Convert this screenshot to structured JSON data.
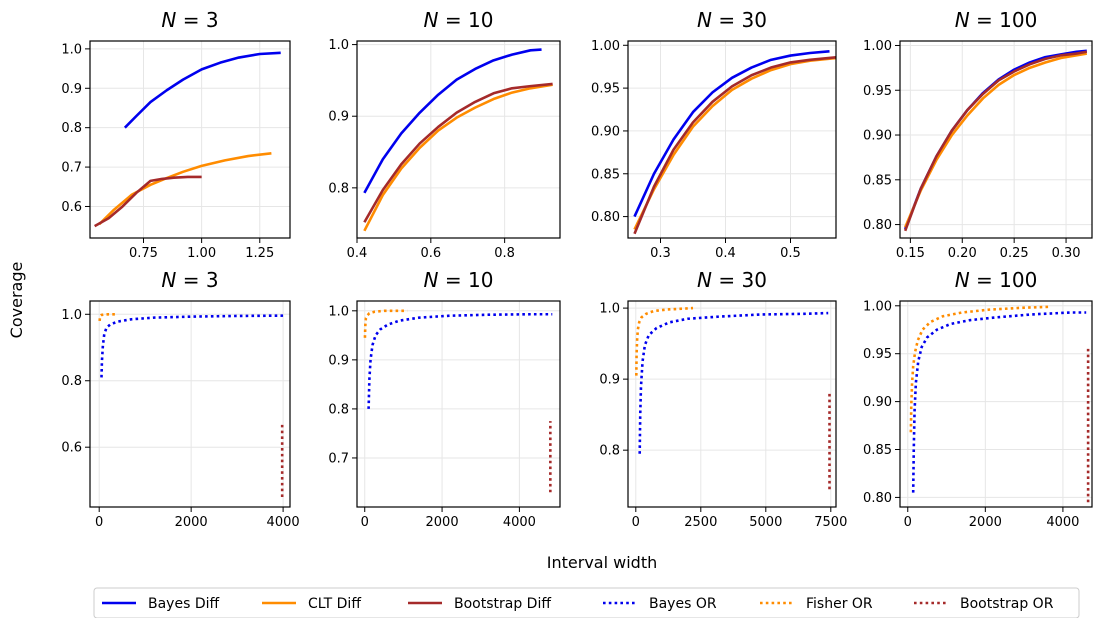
{
  "figure": {
    "xlabel": "Interval width",
    "ylabel": "Coverage"
  },
  "legend": {
    "placement": "bottom",
    "items": [
      {
        "label": "Bayes Diff",
        "color": "#0000ee",
        "dash": "solid"
      },
      {
        "label": "CLT Diff",
        "color": "#ff8c00",
        "dash": "solid"
      },
      {
        "label": "Bootstrap Diff",
        "color": "#a52a2a",
        "dash": "solid"
      },
      {
        "label": "Bayes OR",
        "color": "#0000ee",
        "dash": "dotted"
      },
      {
        "label": "Fisher OR",
        "color": "#ff8c00",
        "dash": "dotted"
      },
      {
        "label": "Bootstrap OR",
        "color": "#a52a2a",
        "dash": "dotted"
      }
    ]
  },
  "chart_data": [
    {
      "type": "line",
      "title": "N = 3",
      "grid": true,
      "xlim": [
        0.52,
        1.38
      ],
      "ylim": [
        0.52,
        1.02
      ],
      "xticks": [
        0.75,
        1.0,
        1.25
      ],
      "xticklabels": [
        "0.75",
        "1.00",
        "1.25"
      ],
      "yticks": [
        0.6,
        0.7,
        0.8,
        0.9,
        1.0
      ],
      "yticklabels": [
        "0.6",
        "0.7",
        "0.8",
        "0.9",
        "1.0"
      ],
      "series": [
        {
          "name": "Bayes Diff",
          "x": [
            0.67,
            0.72,
            0.78,
            0.85,
            0.92,
            1.0,
            1.08,
            1.16,
            1.25,
            1.34
          ],
          "y": [
            0.8,
            0.83,
            0.865,
            0.895,
            0.922,
            0.948,
            0.965,
            0.978,
            0.987,
            0.99
          ]
        },
        {
          "name": "CLT Diff",
          "x": [
            0.56,
            0.62,
            0.7,
            0.78,
            0.85,
            0.92,
            1.0,
            1.1,
            1.2,
            1.3
          ],
          "y": [
            0.555,
            0.59,
            0.63,
            0.655,
            0.672,
            0.688,
            0.703,
            0.717,
            0.728,
            0.735
          ]
        },
        {
          "name": "Bootstrap Diff",
          "x": [
            0.54,
            0.6,
            0.66,
            0.72,
            0.78,
            0.83,
            0.88,
            0.94,
            1.0
          ],
          "y": [
            0.55,
            0.57,
            0.6,
            0.635,
            0.665,
            0.67,
            0.673,
            0.675,
            0.675
          ]
        }
      ]
    },
    {
      "type": "line",
      "title": "N = 10",
      "grid": true,
      "xlim": [
        0.4,
        0.95
      ],
      "ylim": [
        0.73,
        1.005
      ],
      "xticks": [
        0.4,
        0.6,
        0.8
      ],
      "xticklabels": [
        "0.4",
        "0.6",
        "0.8"
      ],
      "yticks": [
        0.8,
        0.9,
        1.0
      ],
      "yticklabels": [
        "0.8",
        "0.9",
        "1.0"
      ],
      "series": [
        {
          "name": "Bayes Diff",
          "x": [
            0.42,
            0.47,
            0.52,
            0.57,
            0.62,
            0.67,
            0.72,
            0.77,
            0.82,
            0.87,
            0.9
          ],
          "y": [
            0.793,
            0.84,
            0.876,
            0.905,
            0.93,
            0.951,
            0.966,
            0.978,
            0.986,
            0.992,
            0.993
          ]
        },
        {
          "name": "CLT Diff",
          "x": [
            0.42,
            0.47,
            0.52,
            0.57,
            0.62,
            0.67,
            0.72,
            0.77,
            0.82,
            0.87,
            0.93
          ],
          "y": [
            0.74,
            0.79,
            0.827,
            0.856,
            0.88,
            0.898,
            0.912,
            0.924,
            0.933,
            0.939,
            0.944
          ]
        },
        {
          "name": "Bootstrap Diff",
          "x": [
            0.42,
            0.47,
            0.52,
            0.57,
            0.62,
            0.67,
            0.72,
            0.77,
            0.82,
            0.87,
            0.93
          ],
          "y": [
            0.752,
            0.797,
            0.833,
            0.862,
            0.885,
            0.905,
            0.92,
            0.932,
            0.939,
            0.942,
            0.945
          ]
        }
      ]
    },
    {
      "type": "line",
      "title": "N = 30",
      "grid": true,
      "xlim": [
        0.25,
        0.57
      ],
      "ylim": [
        0.775,
        1.005
      ],
      "xticks": [
        0.3,
        0.4,
        0.5
      ],
      "xticklabels": [
        "0.3",
        "0.4",
        "0.5"
      ],
      "yticks": [
        0.8,
        0.85,
        0.9,
        0.95,
        1.0
      ],
      "yticklabels": [
        "0.80",
        "0.85",
        "0.90",
        "0.95",
        "1.00"
      ],
      "series": [
        {
          "name": "Bayes Diff",
          "x": [
            0.26,
            0.29,
            0.32,
            0.35,
            0.38,
            0.41,
            0.44,
            0.47,
            0.5,
            0.53,
            0.56
          ],
          "y": [
            0.8,
            0.85,
            0.89,
            0.922,
            0.945,
            0.962,
            0.974,
            0.983,
            0.988,
            0.991,
            0.993
          ]
        },
        {
          "name": "CLT Diff",
          "x": [
            0.26,
            0.29,
            0.32,
            0.35,
            0.38,
            0.41,
            0.44,
            0.47,
            0.5,
            0.53,
            0.57
          ],
          "y": [
            0.785,
            0.832,
            0.872,
            0.905,
            0.929,
            0.948,
            0.961,
            0.971,
            0.978,
            0.982,
            0.985
          ]
        },
        {
          "name": "Bootstrap Diff",
          "x": [
            0.26,
            0.29,
            0.32,
            0.35,
            0.38,
            0.41,
            0.44,
            0.47,
            0.5,
            0.53,
            0.57
          ],
          "y": [
            0.78,
            0.835,
            0.878,
            0.91,
            0.934,
            0.952,
            0.965,
            0.974,
            0.98,
            0.983,
            0.986
          ]
        }
      ]
    },
    {
      "type": "line",
      "title": "N = 100",
      "grid": true,
      "xlim": [
        0.14,
        0.325
      ],
      "ylim": [
        0.785,
        1.005
      ],
      "xticks": [
        0.15,
        0.2,
        0.25,
        0.3
      ],
      "xticklabels": [
        "0.15",
        "0.20",
        "0.25",
        "0.30"
      ],
      "yticks": [
        0.8,
        0.85,
        0.9,
        0.95,
        1.0
      ],
      "yticklabels": [
        "0.80",
        "0.85",
        "0.90",
        "0.95",
        "1.00"
      ],
      "series": [
        {
          "name": "Bayes Diff",
          "x": [
            0.145,
            0.16,
            0.175,
            0.19,
            0.205,
            0.22,
            0.235,
            0.25,
            0.265,
            0.28,
            0.295,
            0.31,
            0.32
          ],
          "y": [
            0.795,
            0.84,
            0.876,
            0.905,
            0.928,
            0.947,
            0.962,
            0.973,
            0.981,
            0.987,
            0.99,
            0.993,
            0.994
          ]
        },
        {
          "name": "CLT Diff",
          "x": [
            0.145,
            0.16,
            0.175,
            0.19,
            0.205,
            0.22,
            0.235,
            0.25,
            0.265,
            0.28,
            0.295,
            0.31,
            0.32
          ],
          "y": [
            0.797,
            0.838,
            0.872,
            0.9,
            0.922,
            0.941,
            0.956,
            0.967,
            0.975,
            0.981,
            0.986,
            0.989,
            0.991
          ]
        },
        {
          "name": "Bootstrap Diff",
          "x": [
            0.145,
            0.16,
            0.175,
            0.19,
            0.205,
            0.22,
            0.235,
            0.25,
            0.265,
            0.28,
            0.295,
            0.31,
            0.32
          ],
          "y": [
            0.793,
            0.84,
            0.876,
            0.905,
            0.928,
            0.946,
            0.961,
            0.971,
            0.979,
            0.985,
            0.989,
            0.991,
            0.993
          ]
        }
      ]
    },
    {
      "type": "line",
      "title": "N = 3",
      "grid": true,
      "xlim": [
        -200,
        4150
      ],
      "ylim": [
        0.42,
        1.04
      ],
      "xticks": [
        0,
        2000,
        4000
      ],
      "xticklabels": [
        "0",
        "2000",
        "4000"
      ],
      "yticks": [
        0.6,
        0.8,
        1.0
      ],
      "yticklabels": [
        "0.6",
        "0.8",
        "1.0"
      ],
      "series": [
        {
          "name": "Bayes OR",
          "x": [
            50,
            60,
            80,
            110,
            160,
            250,
            400,
            700,
            1200,
            2000,
            3000,
            4000
          ],
          "y": [
            0.81,
            0.86,
            0.905,
            0.94,
            0.96,
            0.97,
            0.978,
            0.985,
            0.99,
            0.993,
            0.995,
            0.996
          ]
        },
        {
          "name": "Fisher OR",
          "x": [
            10,
            15,
            25,
            50,
            100,
            200,
            300,
            400
          ],
          "y": [
            0.98,
            0.99,
            0.995,
            0.998,
            0.999,
            1.0,
            1.0,
            1.0
          ]
        },
        {
          "name": "Bootstrap OR",
          "x": [
            3980,
            3980,
            3980,
            3980,
            3980,
            3980
          ],
          "y": [
            0.45,
            0.5,
            0.54,
            0.58,
            0.62,
            0.67
          ]
        }
      ]
    },
    {
      "type": "line",
      "title": "N = 10",
      "grid": true,
      "xlim": [
        -200,
        5050
      ],
      "ylim": [
        0.6,
        1.02
      ],
      "xticks": [
        0,
        2000,
        4000
      ],
      "xticklabels": [
        "0",
        "2000",
        "4000"
      ],
      "yticks": [
        0.7,
        0.8,
        0.9,
        1.0
      ],
      "yticklabels": [
        "0.7",
        "0.8",
        "0.9",
        "1.0"
      ],
      "series": [
        {
          "name": "Bayes OR",
          "x": [
            100,
            120,
            150,
            200,
            280,
            400,
            600,
            900,
            1400,
            2200,
            3200,
            4300,
            4850
          ],
          "y": [
            0.8,
            0.86,
            0.9,
            0.93,
            0.95,
            0.962,
            0.972,
            0.98,
            0.986,
            0.99,
            0.992,
            0.993,
            0.993
          ]
        },
        {
          "name": "Fisher OR",
          "x": [
            5,
            15,
            30,
            60,
            120,
            250,
            500,
            800,
            1100
          ],
          "y": [
            0.945,
            0.97,
            0.985,
            0.99,
            0.995,
            0.998,
            1.0,
            1.0,
            1.0
          ]
        },
        {
          "name": "Bootstrap OR",
          "x": [
            4800,
            4800,
            4800,
            4800,
            4800,
            4800
          ],
          "y": [
            0.63,
            0.66,
            0.69,
            0.72,
            0.75,
            0.775
          ]
        }
      ]
    },
    {
      "type": "line",
      "title": "N = 30",
      "grid": true,
      "xlim": [
        -300,
        7700
      ],
      "ylim": [
        0.72,
        1.01
      ],
      "xticks": [
        0,
        2500,
        5000,
        7500
      ],
      "xticklabels": [
        "0",
        "2500",
        "5000",
        "7500"
      ],
      "yticks": [
        0.8,
        0.9,
        1.0
      ],
      "yticklabels": [
        "0.8",
        "0.9",
        "1.0"
      ],
      "series": [
        {
          "name": "Bayes OR",
          "x": [
            150,
            170,
            200,
            260,
            350,
            500,
            800,
            1300,
            2000,
            3200,
            4800,
            6500,
            7400
          ],
          "y": [
            0.795,
            0.85,
            0.89,
            0.925,
            0.948,
            0.962,
            0.972,
            0.98,
            0.985,
            0.988,
            0.991,
            0.992,
            0.993
          ]
        },
        {
          "name": "Fisher OR",
          "x": [
            20,
            30,
            50,
            80,
            130,
            220,
            400,
            700,
            1200,
            1700,
            2200
          ],
          "y": [
            0.905,
            0.935,
            0.955,
            0.97,
            0.98,
            0.987,
            0.992,
            0.996,
            0.998,
            0.999,
            1.0
          ]
        },
        {
          "name": "Bootstrap OR",
          "x": [
            7450,
            7450,
            7450,
            7450,
            7450,
            7450
          ],
          "y": [
            0.745,
            0.77,
            0.8,
            0.83,
            0.86,
            0.88
          ]
        }
      ]
    },
    {
      "type": "line",
      "title": "N = 100",
      "grid": true,
      "xlim": [
        -200,
        4750
      ],
      "ylim": [
        0.79,
        1.005
      ],
      "xticks": [
        0,
        2000,
        4000
      ],
      "xticklabels": [
        "0",
        "2000",
        "4000"
      ],
      "yticks": [
        0.8,
        0.85,
        0.9,
        0.95,
        1.0
      ],
      "yticklabels": [
        "0.80",
        "0.85",
        "0.90",
        "0.95",
        "1.00"
      ],
      "series": [
        {
          "name": "Bayes OR",
          "x": [
            140,
            155,
            175,
            210,
            270,
            360,
            500,
            750,
            1100,
            1600,
            2300,
            3200,
            4200,
            4600
          ],
          "y": [
            0.805,
            0.85,
            0.89,
            0.92,
            0.942,
            0.957,
            0.967,
            0.975,
            0.981,
            0.985,
            0.988,
            0.991,
            0.993,
            0.993
          ]
        },
        {
          "name": "Fisher OR",
          "x": [
            80,
            90,
            110,
            140,
            190,
            260,
            380,
            580,
            900,
            1400,
            2100,
            3000,
            3700
          ],
          "y": [
            0.868,
            0.895,
            0.918,
            0.937,
            0.952,
            0.964,
            0.975,
            0.983,
            0.989,
            0.993,
            0.996,
            0.998,
            0.999
          ]
        },
        {
          "name": "Bootstrap OR",
          "x": [
            4650,
            4650,
            4650,
            4650,
            4650,
            4650
          ],
          "y": [
            0.795,
            0.82,
            0.86,
            0.9,
            0.93,
            0.955
          ]
        }
      ]
    }
  ]
}
